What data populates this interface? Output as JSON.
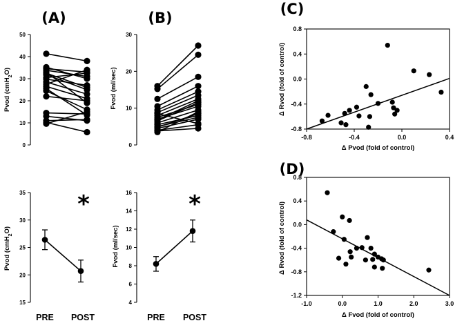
{
  "chart_data": [
    {
      "id": "A",
      "type": "line",
      "label": "(A)",
      "ylabel": "Pvod (cmH2O)",
      "ylabel_base": "Pvod (cmH",
      "ylabel_sub": "2",
      "ylabel_end": "O)",
      "ylim": [
        0,
        50
      ],
      "yticks": [
        0,
        10,
        20,
        30,
        40,
        50
      ],
      "categories": [
        "PRE",
        "POST"
      ],
      "pairs": [
        [
          41.3,
          38.0
        ],
        [
          35.2,
          30.0
        ],
        [
          34.5,
          33.0
        ],
        [
          33.8,
          31.0
        ],
        [
          33.0,
          19.0
        ],
        [
          32.5,
          26.0
        ],
        [
          31.8,
          25.0
        ],
        [
          30.5,
          32.5
        ],
        [
          29.8,
          27.0
        ],
        [
          28.5,
          23.0
        ],
        [
          27.5,
          34.0
        ],
        [
          26.5,
          21.0
        ],
        [
          25.5,
          13.5
        ],
        [
          24.5,
          16.0
        ],
        [
          22.0,
          20.0
        ],
        [
          14.5,
          14.0
        ],
        [
          13.0,
          11.0
        ],
        [
          11.0,
          11.5
        ],
        [
          10.2,
          5.8
        ],
        [
          9.6,
          15.0
        ]
      ]
    },
    {
      "id": "B",
      "type": "line",
      "label": "(B)",
      "ylabel": "Fvod (ml/sec)",
      "ylim": [
        0,
        30
      ],
      "yticks": [
        0,
        10,
        20,
        30
      ],
      "categories": [
        "PRE",
        "POST"
      ],
      "pairs": [
        [
          16.0,
          27.0
        ],
        [
          15.2,
          24.5
        ],
        [
          12.5,
          18.5
        ],
        [
          10.5,
          16.0
        ],
        [
          9.5,
          14.5
        ],
        [
          8.8,
          13.5
        ],
        [
          8.0,
          12.5
        ],
        [
          7.5,
          11.0
        ],
        [
          7.0,
          10.5
        ],
        [
          6.5,
          11.5
        ],
        [
          6.0,
          9.5
        ],
        [
          5.5,
          8.0
        ],
        [
          5.0,
          7.5
        ],
        [
          4.5,
          7.0
        ],
        [
          4.0,
          5.5
        ],
        [
          3.5,
          9.0
        ],
        [
          8.5,
          5.8
        ],
        [
          6.8,
          12.0
        ],
        [
          4.8,
          8.5
        ],
        [
          3.8,
          4.5
        ]
      ]
    },
    {
      "id": "A2",
      "type": "line",
      "ylabel": "Pvod (cmH2O)",
      "ylabel_base": "Pvod (cmH",
      "ylabel_sub": "2",
      "ylabel_end": "O)",
      "ylim": [
        15,
        35
      ],
      "yticks": [
        15,
        20,
        25,
        30,
        35
      ],
      "categories": [
        "PRE",
        "POST"
      ],
      "mean": [
        26.4,
        20.7
      ],
      "error": [
        1.8,
        2.0
      ],
      "significance_marker": "*"
    },
    {
      "id": "B2",
      "type": "line",
      "ylabel": "Fvod (ml/sec)",
      "ylim": [
        4,
        16
      ],
      "yticks": [
        4,
        6,
        8,
        10,
        12,
        14,
        16
      ],
      "categories": [
        "PRE",
        "POST"
      ],
      "mean": [
        8.2,
        11.8
      ],
      "error": [
        0.8,
        1.2
      ],
      "significance_marker": "*"
    },
    {
      "id": "C",
      "type": "scatter",
      "label": "(C)",
      "xlabel": "Δ  Pvod (fold of control)",
      "ylabel": "Δ  Rvod (fold of control)",
      "xlim": [
        -0.8,
        0.4
      ],
      "ylim": [
        -0.8,
        0.8
      ],
      "xticks": [
        -0.8,
        -0.4,
        0.0,
        0.4
      ],
      "xtick_labels": [
        "-0.8",
        "-0.4",
        "0.0",
        "0.4"
      ],
      "yticks": [
        0.8,
        0.4,
        0.0,
        -0.4,
        -0.8
      ],
      "ytick_labels": [
        "0.8",
        "0.4",
        "0.0",
        "-0.4",
        "-0.8"
      ],
      "points": [
        [
          -0.12,
          0.54
        ],
        [
          0.1,
          0.13
        ],
        [
          0.23,
          0.07
        ],
        [
          0.33,
          -0.21
        ],
        [
          -0.3,
          -0.12
        ],
        [
          -0.26,
          -0.25
        ],
        [
          -0.2,
          -0.39
        ],
        [
          -0.38,
          -0.45
        ],
        [
          -0.44,
          -0.5
        ],
        [
          -0.48,
          -0.55
        ],
        [
          -0.62,
          -0.58
        ],
        [
          -0.67,
          -0.67
        ],
        [
          -0.51,
          -0.7
        ],
        [
          -0.47,
          -0.73
        ],
        [
          -0.36,
          -0.59
        ],
        [
          -0.27,
          -0.6
        ],
        [
          -0.28,
          -0.77
        ],
        [
          -0.08,
          -0.37
        ],
        [
          -0.07,
          -0.46
        ],
        [
          -0.04,
          -0.5
        ],
        [
          -0.06,
          -0.56
        ]
      ],
      "fit_line": [
        [
          -0.8,
          -0.8
        ],
        [
          0.4,
          0.01
        ]
      ]
    },
    {
      "id": "D",
      "type": "scatter",
      "label": "(D)",
      "xlabel": "Δ  Fvod (fold of control)",
      "ylabel": "Δ  Rvod (fold of control)",
      "xlim": [
        -1.0,
        3.0
      ],
      "ylim": [
        -1.2,
        0.8
      ],
      "xticks": [
        -1.0,
        0.0,
        1.0,
        2.0,
        3.0
      ],
      "xtick_labels": [
        "-1.0",
        "0.0",
        "1.0",
        "2.0",
        "3.0"
      ],
      "yticks": [
        0.8,
        0.4,
        0.0,
        -0.4,
        -0.8,
        -1.2
      ],
      "ytick_labels": [
        "0.8",
        "0.4",
        "0.0",
        "-0.4",
        "-0.8",
        "-1.2"
      ],
      "points": [
        [
          -0.42,
          0.54
        ],
        [
          0.0,
          0.13
        ],
        [
          0.2,
          0.07
        ],
        [
          -0.25,
          -0.12
        ],
        [
          0.05,
          -0.25
        ],
        [
          0.4,
          -0.4
        ],
        [
          0.55,
          -0.39
        ],
        [
          0.7,
          -0.22
        ],
        [
          0.8,
          -0.4
        ],
        [
          0.22,
          -0.46
        ],
        [
          0.25,
          -0.55
        ],
        [
          -0.1,
          -0.57
        ],
        [
          0.65,
          -0.6
        ],
        [
          0.9,
          -0.5
        ],
        [
          1.0,
          -0.55
        ],
        [
          1.1,
          -0.58
        ],
        [
          1.15,
          -0.6
        ],
        [
          0.85,
          -0.59
        ],
        [
          0.9,
          -0.72
        ],
        [
          0.1,
          -0.67
        ],
        [
          1.12,
          -0.74
        ],
        [
          2.42,
          -0.77
        ]
      ],
      "fit_line": [
        [
          -1.0,
          0.08
        ],
        [
          3.0,
          -1.2
        ]
      ]
    }
  ]
}
